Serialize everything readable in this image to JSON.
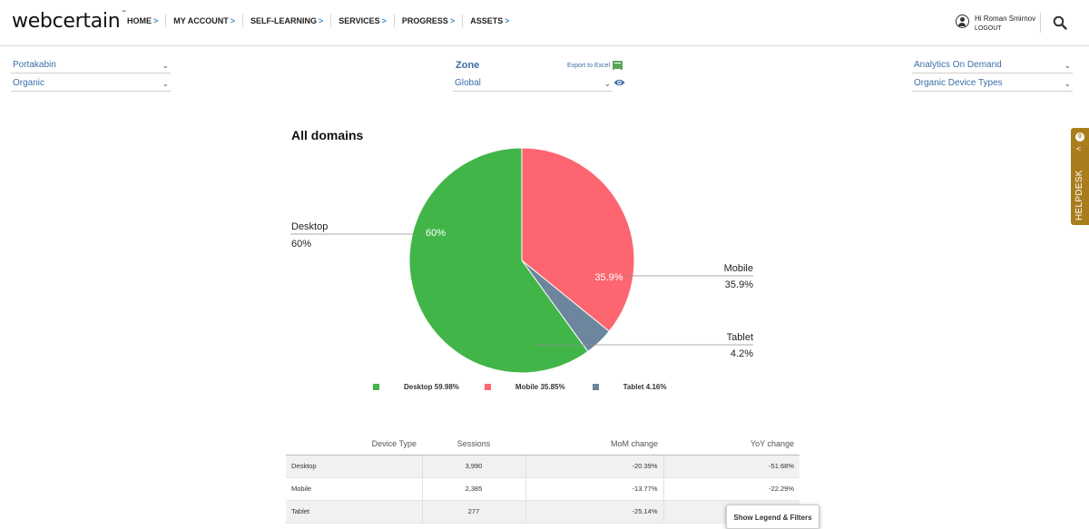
{
  "brand": {
    "name": "webcertain",
    "trademark": "™"
  },
  "nav": {
    "items": [
      {
        "label": "HOME"
      },
      {
        "label": "MY ACCOUNT"
      },
      {
        "label": "SELF-LEARNING"
      },
      {
        "label": "SERVICES"
      },
      {
        "label": "PROGRESS"
      },
      {
        "label": "ASSETS"
      }
    ],
    "chevron": ">"
  },
  "user": {
    "greeting": "Hi Roman Smirnov",
    "logout": "LOGOUT",
    "icon": "user-circle-icon"
  },
  "search": {
    "icon": "search-icon"
  },
  "filters": {
    "client": "Portakabin",
    "channel": "Organic",
    "zone_label": "Zone",
    "zone": "Global",
    "export_label": "Export to Excel",
    "product": "Analytics On Demand",
    "report": "Organic Device Types",
    "caret": "⌄"
  },
  "helpdesk": {
    "label": "HELPDESK",
    "badge": "0",
    "chevron": "<"
  },
  "chart_data": {
    "type": "pie",
    "title": "All domains",
    "slices": [
      {
        "name": "Desktop",
        "value": 59.98,
        "label": "60%",
        "inner_label": "60%",
        "legend": "Desktop 59.98%",
        "color": "#42b549"
      },
      {
        "name": "Mobile",
        "value": 35.85,
        "label": "35.9%",
        "inner_label": "35.9%",
        "legend": "Mobile 35.85%",
        "color": "#fd6671"
      },
      {
        "name": "Tablet",
        "value": 4.16,
        "label": "4.2%",
        "inner_label": "",
        "legend": "Tablet 4.16%",
        "color": "#6d869e"
      }
    ],
    "legend_position": "bottom"
  },
  "table": {
    "headers": [
      "Device Type",
      "Sessions",
      "MoM change",
      "YoY change"
    ],
    "rows": [
      [
        "Desktop",
        "3,990",
        "-20.39%",
        "-51.68%"
      ],
      [
        "Mobile",
        "2,385",
        "-13.77%",
        "-22.29%"
      ],
      [
        "Tablet",
        "277",
        "-25.14%",
        ""
      ]
    ]
  },
  "show_legend_button": "Show Legend & Filters",
  "colors": {
    "link": "#3b6ea8",
    "accent_chevron": "#3a8ecc",
    "helpdesk": "#a97d1c"
  }
}
